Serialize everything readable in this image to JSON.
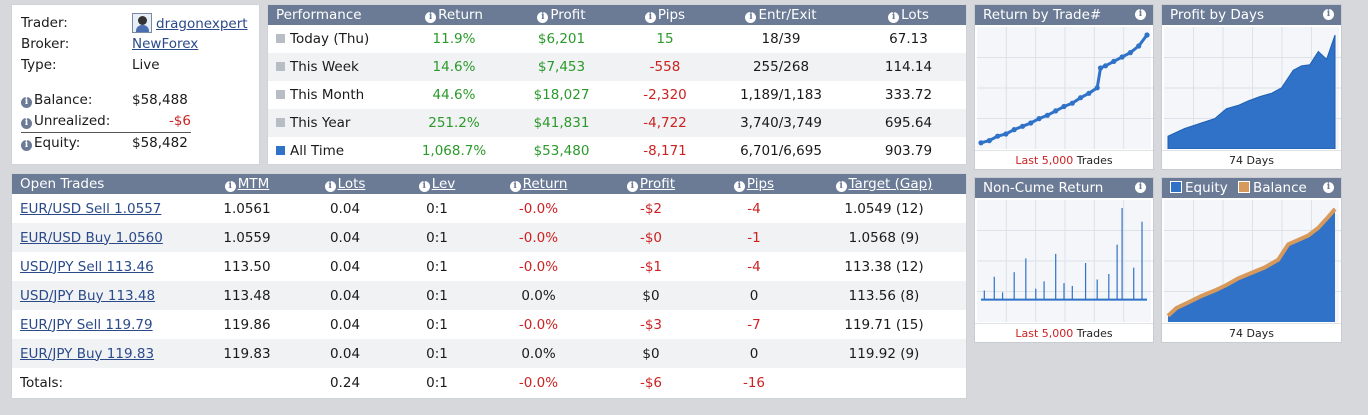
{
  "trader_info": {
    "trader_label": "Trader:",
    "trader_name": "dragonexpert",
    "broker_label": "Broker:",
    "broker_name": "NewForex",
    "type_label": "Type:",
    "type_value": "Live",
    "balance_label": "Balance:",
    "balance_value": "$58,488",
    "unrealized_label": "Unrealized:",
    "unrealized_value": "-$6",
    "equity_label": "Equity:",
    "equity_value": "$58,482"
  },
  "performance": {
    "headers": [
      "Performance",
      "Return",
      "Profit",
      "Pips",
      "Entr/Exit",
      "Lots"
    ],
    "rows": [
      {
        "period": "Today (Thu)",
        "return": "11.9%",
        "profit": "$6,201",
        "pips": "15",
        "entr_exit": "18/39",
        "lots": "67.13"
      },
      {
        "period": "This Week",
        "return": "14.6%",
        "profit": "$7,453",
        "pips": "-558",
        "entr_exit": "255/268",
        "lots": "114.14"
      },
      {
        "period": "This Month",
        "return": "44.6%",
        "profit": "$18,027",
        "pips": "-2,320",
        "entr_exit": "1,189/1,183",
        "lots": "333.72"
      },
      {
        "period": "This Year",
        "return": "251.2%",
        "profit": "$41,831",
        "pips": "-4,722",
        "entr_exit": "3,740/3,749",
        "lots": "695.64"
      },
      {
        "period": "All Time",
        "return": "1,068.7%",
        "profit": "$53,480",
        "pips": "-8,171",
        "entr_exit": "6,701/6,695",
        "lots": "903.79"
      }
    ]
  },
  "open_trades": {
    "headers": [
      "Open Trades",
      "MTM",
      "Lots",
      "Lev",
      "Return",
      "Profit",
      "Pips",
      "Target (Gap)"
    ],
    "rows": [
      {
        "trade": "EUR/USD Sell 1.0557",
        "mtm": "1.0561",
        "lots": "0.04",
        "lev": "0:1",
        "return": "-0.0%",
        "profit": "-$2",
        "pips": "-4",
        "target": "1.0549 (12)"
      },
      {
        "trade": "EUR/USD Buy 1.0560",
        "mtm": "1.0559",
        "lots": "0.04",
        "lev": "0:1",
        "return": "-0.0%",
        "profit": "-$0",
        "pips": "-1",
        "target": "1.0568 (9)"
      },
      {
        "trade": "USD/JPY Sell 113.46",
        "mtm": "113.50",
        "lots": "0.04",
        "lev": "0:1",
        "return": "-0.0%",
        "profit": "-$1",
        "pips": "-4",
        "target": "113.38 (12)"
      },
      {
        "trade": "USD/JPY Buy 113.48",
        "mtm": "113.48",
        "lots": "0.04",
        "lev": "0:1",
        "return": "0.0%",
        "profit": "$0",
        "pips": "0",
        "target": "113.56 (8)"
      },
      {
        "trade": "EUR/JPY Sell 119.79",
        "mtm": "119.86",
        "lots": "0.04",
        "lev": "0:1",
        "return": "-0.0%",
        "profit": "-$3",
        "pips": "-7",
        "target": "119.71 (15)"
      },
      {
        "trade": "EUR/JPY Buy 119.83",
        "mtm": "119.83",
        "lots": "0.04",
        "lev": "0:1",
        "return": "0.0%",
        "profit": "$0",
        "pips": "0",
        "target": "119.92 (9)"
      }
    ],
    "totals": {
      "label": "Totals:",
      "lots": "0.24",
      "lev": "0:1",
      "return": "-0.0%",
      "profit": "-$6",
      "pips": "-16"
    }
  },
  "widgets": {
    "return_by_trade": {
      "title": "Return by Trade#",
      "footer_highlight": "Last 5,000",
      "footer_rest": " Trades"
    },
    "profit_by_days": {
      "title": "Profit by Days",
      "footer": "74 Days"
    },
    "non_cume_return": {
      "title": "Non-Cume Return",
      "footer_highlight": "Last 5,000",
      "footer_rest": " Trades"
    },
    "equity_balance": {
      "equity_label": "Equity",
      "balance_label": "Balance",
      "footer": "74 Days"
    }
  },
  "colors": {
    "header_bg": "#6b7b96",
    "positive": "#2a9a2a",
    "negative": "#cc2222",
    "chart_blue": "#2f72c8",
    "balance_orange": "#d89a5c"
  },
  "icons": {
    "info": "info-circle-icon",
    "avatar": "trader-avatar-icon",
    "period_square": "period-square-icon"
  },
  "chart_data": [
    {
      "type": "scatter",
      "title": "Return by Trade#",
      "x": [
        0,
        0.05,
        0.1,
        0.15,
        0.2,
        0.25,
        0.3,
        0.35,
        0.4,
        0.45,
        0.5,
        0.55,
        0.6,
        0.65,
        0.7,
        0.72,
        0.75,
        0.8,
        0.85,
        0.9,
        0.95,
        1.0
      ],
      "values": [
        2,
        4,
        8,
        10,
        14,
        17,
        20,
        24,
        27,
        31,
        35,
        38,
        43,
        47,
        52,
        70,
        72,
        76,
        80,
        84,
        90,
        100
      ],
      "xlabel": "Last 5,000 Trades",
      "ylabel": "",
      "ylim": [
        0,
        100
      ]
    },
    {
      "type": "area",
      "title": "Profit by Days",
      "x": [
        0,
        0.1,
        0.2,
        0.28,
        0.35,
        0.42,
        0.48,
        0.55,
        0.62,
        0.68,
        0.75,
        0.8,
        0.85,
        0.9,
        0.95,
        1.0
      ],
      "values": [
        8,
        15,
        20,
        24,
        33,
        36,
        40,
        44,
        47,
        52,
        68,
        72,
        73,
        85,
        78,
        100
      ],
      "xlabel": "74 Days",
      "ylabel": "",
      "ylim": [
        0,
        100
      ]
    },
    {
      "type": "bar",
      "title": "Non-Cume Return",
      "x": [
        0.02,
        0.08,
        0.13,
        0.2,
        0.27,
        0.33,
        0.38,
        0.45,
        0.5,
        0.55,
        0.63,
        0.7,
        0.77,
        0.82,
        0.85,
        0.92,
        0.97
      ],
      "values": [
        10,
        25,
        8,
        30,
        45,
        12,
        20,
        50,
        18,
        15,
        40,
        22,
        28,
        60,
        100,
        35,
        85
      ],
      "xlabel": "Last 5,000 Trades",
      "ylabel": "",
      "ylim": [
        -20,
        100
      ]
    },
    {
      "type": "area",
      "series": [
        {
          "name": "Equity",
          "values": [
            2,
            8,
            14,
            20,
            24,
            30,
            36,
            40,
            46,
            52,
            66,
            70,
            74,
            80,
            90,
            100
          ]
        },
        {
          "name": "Balance",
          "values": [
            2,
            9,
            14,
            20,
            25,
            30,
            36,
            41,
            46,
            53,
            67,
            71,
            75,
            82,
            92,
            99
          ]
        }
      ],
      "x": [
        0,
        0.05,
        0.12,
        0.2,
        0.28,
        0.35,
        0.42,
        0.5,
        0.58,
        0.66,
        0.72,
        0.78,
        0.84,
        0.9,
        0.96,
        1.0
      ],
      "xlabel": "74 Days",
      "ylabel": "",
      "ylim": [
        0,
        100
      ]
    }
  ]
}
